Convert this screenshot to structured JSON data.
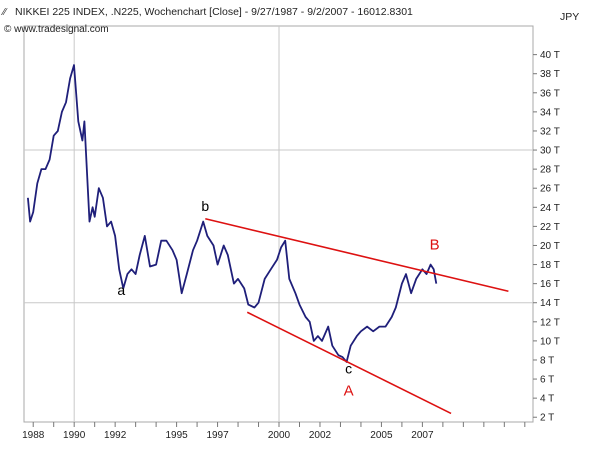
{
  "header": {
    "title": "NIKKEI 225 INDEX, .N225, Wochenchart [Close] - 9/27/1987 - 9/2/2007 - 16012.8301",
    "source": "© www.tradesignal.com",
    "currency": "JPY"
  },
  "colors": {
    "price_line": "#1f1f7a",
    "trend_lines": "#dd1111",
    "grid": "#c8c8c8",
    "wave_label_black": "#000000",
    "wave_label_red": "#dd1111"
  },
  "chart_data": {
    "type": "line",
    "title": "NIKKEI 225 INDEX, .N225, Wochenchart [Close] - 9/27/1987 - 9/2/2007 - 16012.8301",
    "ylabel": "JPY",
    "ylim": [
      1500,
      43000
    ],
    "yticks": [
      2000,
      4000,
      6000,
      8000,
      10000,
      12000,
      14000,
      16000,
      18000,
      20000,
      22000,
      24000,
      26000,
      28000,
      30000,
      32000,
      34000,
      36000,
      38000,
      40000
    ],
    "ytick_labels": [
      "2 T",
      "4 T",
      "6 T",
      "8 T",
      "10 T",
      "12 T",
      "14 T",
      "16 T",
      "18 T",
      "20 T",
      "22 T",
      "24 T",
      "26 T",
      "28 T",
      "30 T",
      "32 T",
      "34 T",
      "36 T",
      "38 T",
      "40 T"
    ],
    "xlim": [
      1987.55,
      2012.4
    ],
    "xticks": [
      1988,
      1990,
      1992,
      1995,
      1997,
      2000,
      2002,
      2005,
      2007
    ],
    "xtick_labels": [
      "1988",
      "1990",
      "1992",
      "1995",
      "1997",
      "2000",
      "2002",
      "2005",
      "2007"
    ],
    "grid": true,
    "series": [
      {
        "x": [
          1987.74,
          1987.85,
          1988.0,
          1988.2,
          1988.4,
          1988.6,
          1988.8,
          1989.0,
          1989.2,
          1989.4,
          1989.6,
          1989.8,
          1989.99,
          1990.2,
          1990.4,
          1990.5,
          1990.75,
          1990.9,
          1991.0,
          1991.2,
          1991.4,
          1991.6,
          1991.8,
          1992.0,
          1992.2,
          1992.4,
          1992.6,
          1992.8,
          1993.0,
          1993.2,
          1993.45,
          1993.7,
          1994.0,
          1994.25,
          1994.5,
          1994.8,
          1995.0,
          1995.25,
          1995.5,
          1995.8,
          1996.0,
          1996.3,
          1996.5,
          1996.8,
          1997.0,
          1997.3,
          1997.5,
          1997.8,
          1998.0,
          1998.3,
          1998.5,
          1998.8,
          1999.0,
          1999.3,
          1999.6,
          1999.9,
          2000.1,
          2000.3,
          2000.5,
          2000.8,
          2001.0,
          2001.3,
          2001.5,
          2001.7,
          2001.9,
          2002.1,
          2002.4,
          2002.6,
          2002.9,
          2003.1,
          2003.3,
          2003.5,
          2003.8,
          2004.0,
          2004.3,
          2004.6,
          2004.9,
          2005.2,
          2005.5,
          2005.7,
          2006.0,
          2006.2,
          2006.45,
          2006.7,
          2007.0,
          2007.2,
          2007.4,
          2007.55,
          2007.68
        ],
        "y": [
          25000,
          22500,
          23500,
          26500,
          28000,
          28000,
          29000,
          31500,
          32000,
          34000,
          35000,
          37500,
          38900,
          33000,
          31000,
          33000,
          22500,
          24000,
          23000,
          26000,
          25000,
          22000,
          22500,
          21000,
          17500,
          15500,
          17000,
          17500,
          17000,
          19000,
          21000,
          17800,
          18000,
          20500,
          20500,
          19500,
          18500,
          15000,
          17000,
          19500,
          20500,
          22500,
          21000,
          20000,
          18000,
          20000,
          19000,
          16000,
          16500,
          15500,
          13800,
          13500,
          14000,
          16500,
          17500,
          18500,
          19800,
          20500,
          16500,
          15000,
          13800,
          12500,
          12000,
          10000,
          10500,
          10000,
          11500,
          9500,
          8500,
          8300,
          7800,
          9500,
          10500,
          11000,
          11500,
          11000,
          11500,
          11500,
          12500,
          13500,
          16000,
          17000,
          15000,
          16500,
          17500,
          17000,
          18000,
          17500,
          16000
        ]
      }
    ],
    "trendlines": [
      {
        "from": [
          1996.4,
          22800
        ],
        "to": [
          2011.2,
          15200
        ]
      },
      {
        "from": [
          1998.45,
          13000
        ],
        "to": [
          2008.4,
          2400
        ]
      }
    ],
    "annotations": [
      {
        "text": "a",
        "x": 1992.3,
        "y": 14800,
        "color": "black"
      },
      {
        "text": "b",
        "x": 1996.4,
        "y": 23600,
        "color": "black"
      },
      {
        "text": "c",
        "x": 2003.4,
        "y": 6600,
        "color": "black"
      },
      {
        "text": "A",
        "x": 2003.4,
        "y": 4300,
        "color": "red"
      },
      {
        "text": "B",
        "x": 2007.6,
        "y": 19600,
        "color": "red"
      }
    ]
  }
}
